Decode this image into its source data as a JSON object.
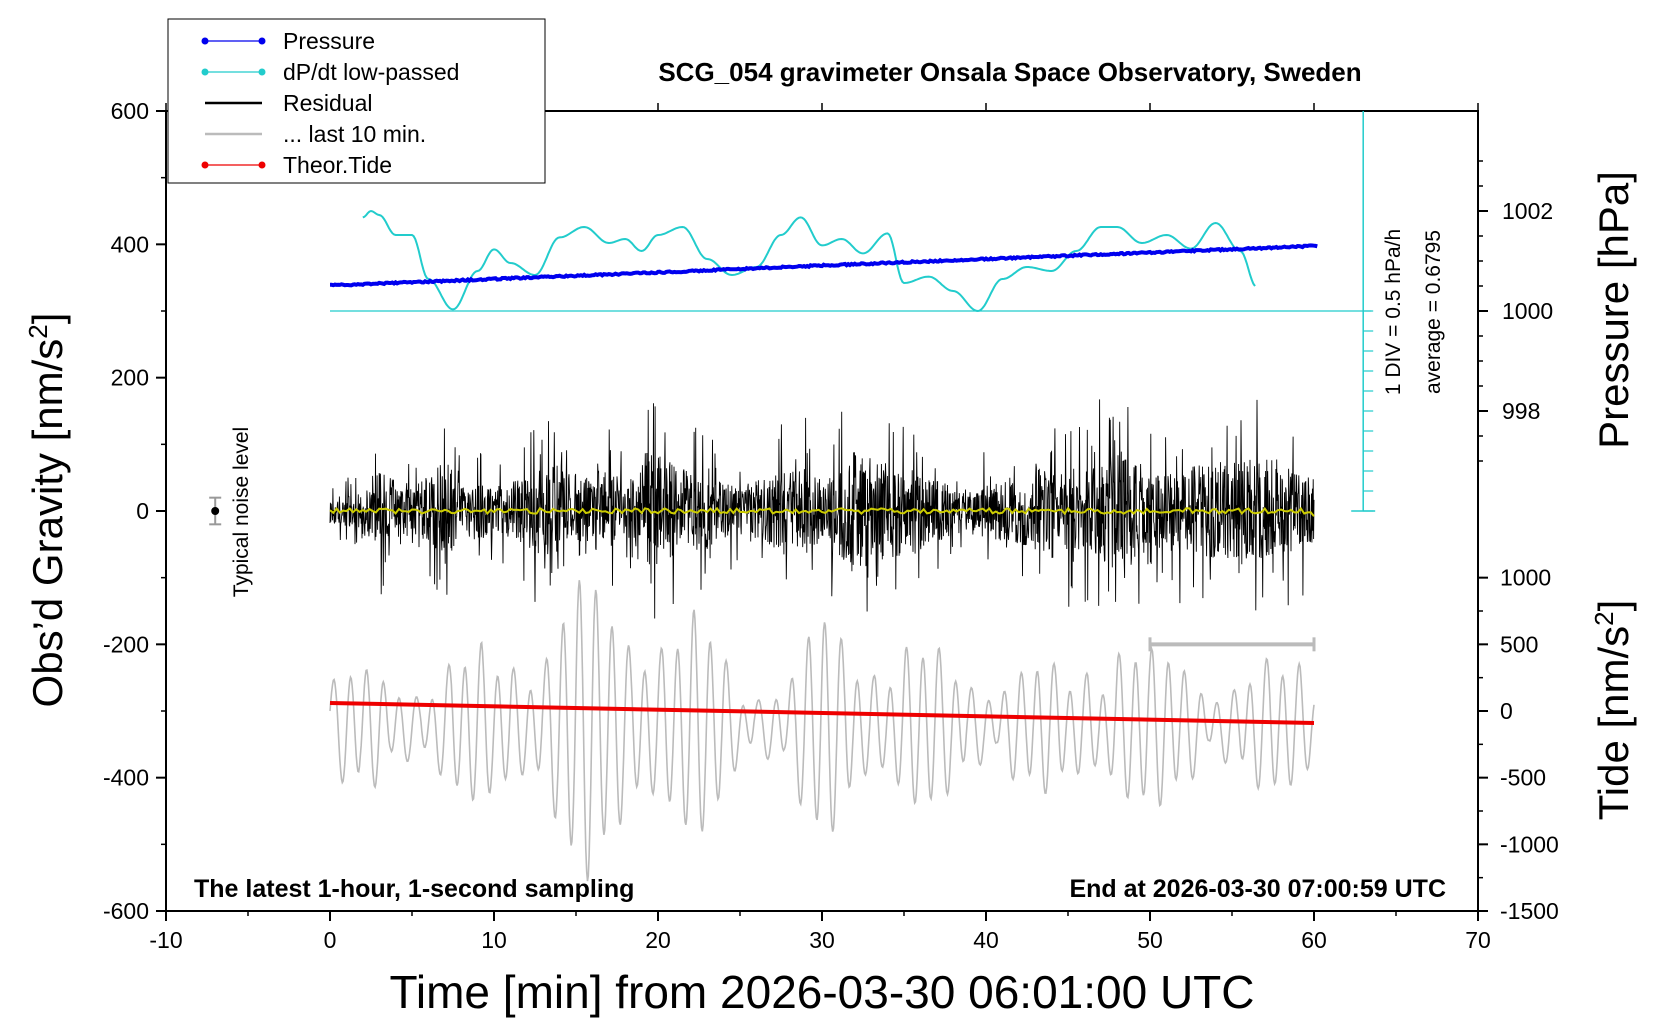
{
  "chart_data": {
    "type": "line",
    "title": "SCG_054 gravimeter Onsala Space Observatory, Sweden",
    "xlabel": "Time [min] from 2026-03-30 06:01:00 UTC",
    "ylabel_left": "Obs’d Gravity [nm/s",
    "ylabel_left_sup": "2",
    "ylabel_left_end": "]",
    "ylabel_right_top": "Pressure [hPa]",
    "ylabel_right_bottom": "Tide [nm/s",
    "ylabel_right_bottom_sup": "2",
    "ylabel_right_bottom_end": "]",
    "xlim": [
      -10,
      70
    ],
    "ylim": [
      -600,
      600
    ],
    "x_ticks": [
      "-10",
      "0",
      "10",
      "20",
      "30",
      "40",
      "50",
      "60",
      "70"
    ],
    "y_ticks": [
      "600",
      "400",
      "200",
      "0",
      "-200",
      "-400",
      "-600"
    ],
    "pressure_ticks": [
      "1002",
      "1000",
      "998"
    ],
    "tide_ticks": [
      "1000",
      "500",
      "0",
      "-500",
      "-1000",
      "-1500"
    ],
    "pressure_scale": {
      "hpa_1000_at_gravity": 300,
      "units_per_hpa": 75
    },
    "tide_scale": {
      "zero_at_gravity": -300,
      "units_per_nms2": 0.2
    },
    "dpdt_scale": {
      "zero_at_gravity": 300,
      "div_gravity_units": 60,
      "div_hpa_per_h": 0.5
    },
    "annotations": {
      "bottom_left": "The latest 1-hour, 1-second sampling",
      "bottom_right": "End at 2026-03-30 07:00:59 UTC",
      "noise": "Typical noise level",
      "div_label": "1 DIV = 0.5 hPa/h",
      "average_label": "average = 0.6795"
    },
    "noise_level": {
      "x": -7,
      "y": 0,
      "half_range": 20
    },
    "last10_bar": {
      "x": [
        50,
        60
      ],
      "y": -200
    },
    "legend": [
      {
        "name": "Pressure",
        "color": "#0000ee",
        "marker": "dot"
      },
      {
        "name": "dP/dt low-passed",
        "color": "#22cccc",
        "marker": "dot"
      },
      {
        "name": "Residual",
        "color": "#000000",
        "marker": "line"
      },
      {
        "name": "... last 10 min.",
        "color": "#bbbbbb",
        "marker": "line"
      },
      {
        "name": "Theor.Tide",
        "color": "#ee0000",
        "marker": "dot"
      }
    ],
    "series": [
      {
        "name": "Pressure",
        "unit": "hPa",
        "color": "#0000ee",
        "x": [
          0,
          10,
          20,
          30,
          40,
          50,
          60
        ],
        "y": [
          1000.51,
          1000.64,
          1000.77,
          1000.91,
          1001.04,
          1001.17,
          1001.3
        ]
      },
      {
        "name": "dP/dt low-passed",
        "unit": "hPa/h",
        "color": "#22cccc",
        "x": [
          2,
          2.5,
          3,
          4,
          5,
          6,
          7.5,
          9,
          10,
          11,
          12.5,
          14,
          15.5,
          17,
          18,
          19,
          20,
          21.5,
          23,
          24.5,
          26,
          27.5,
          28.7,
          30,
          31.2,
          32.5,
          34,
          35,
          36.5,
          38,
          39.5,
          41,
          42.5,
          44,
          45.5,
          47,
          48,
          49.5,
          51,
          52.5,
          54,
          55.5,
          56.5
        ],
        "y": [
          1.17,
          1.25,
          1.2,
          0.95,
          0.95,
          0.4,
          0.02,
          0.5,
          0.77,
          0.6,
          0.45,
          0.92,
          1.05,
          0.85,
          0.9,
          0.75,
          0.95,
          1.05,
          0.65,
          0.45,
          0.55,
          0.95,
          1.17,
          0.82,
          0.9,
          0.72,
          0.97,
          0.35,
          0.43,
          0.25,
          0.0,
          0.4,
          0.55,
          0.5,
          0.75,
          1.05,
          1.05,
          0.85,
          0.95,
          0.78,
          1.1,
          0.75,
          0.3
        ]
      },
      {
        "name": "Residual",
        "unit": "nm/s2",
        "color": "#000000",
        "x": [
          0,
          60
        ],
        "y": [
          0,
          0
        ],
        "envelope_x": [
          0,
          2,
          3,
          4,
          5,
          6,
          7,
          8,
          9,
          10,
          12,
          14,
          15,
          17,
          18,
          19.5,
          21,
          23,
          25,
          27,
          29,
          30,
          32,
          34,
          36,
          38,
          40,
          42,
          44,
          46,
          48,
          50,
          52,
          54,
          56,
          58,
          60
        ],
        "envelope_amp": [
          40,
          60,
          130,
          110,
          80,
          120,
          190,
          80,
          100,
          70,
          130,
          160,
          100,
          150,
          70,
          220,
          150,
          120,
          80,
          130,
          150,
          100,
          200,
          160,
          130,
          80,
          90,
          110,
          160,
          140,
          200,
          120,
          140,
          170,
          180,
          150,
          120
        ]
      },
      {
        "name": "Residual low-passed",
        "unit": "nm/s2",
        "color": "#cccc00",
        "x": [
          0,
          60
        ],
        "y": [
          0,
          0
        ]
      },
      {
        "name": "... last 10 min.",
        "unit": "nm/s2",
        "color": "#bbbbbb",
        "x": [
          0,
          10,
          13,
          15,
          17,
          19,
          21,
          23,
          25,
          28,
          30,
          34,
          38,
          41,
          45,
          48,
          50,
          54,
          58,
          60
        ],
        "envelope_amp": [
          80,
          110,
          180,
          230,
          200,
          240,
          170,
          150,
          80,
          90,
          170,
          140,
          100,
          110,
          80,
          180,
          110,
          100,
          90,
          100
        ]
      },
      {
        "name": "Theor.Tide",
        "unit": "nm/s2",
        "color": "#ee0000",
        "x": [
          0,
          60
        ],
        "y": [
          60,
          -90
        ]
      }
    ]
  }
}
